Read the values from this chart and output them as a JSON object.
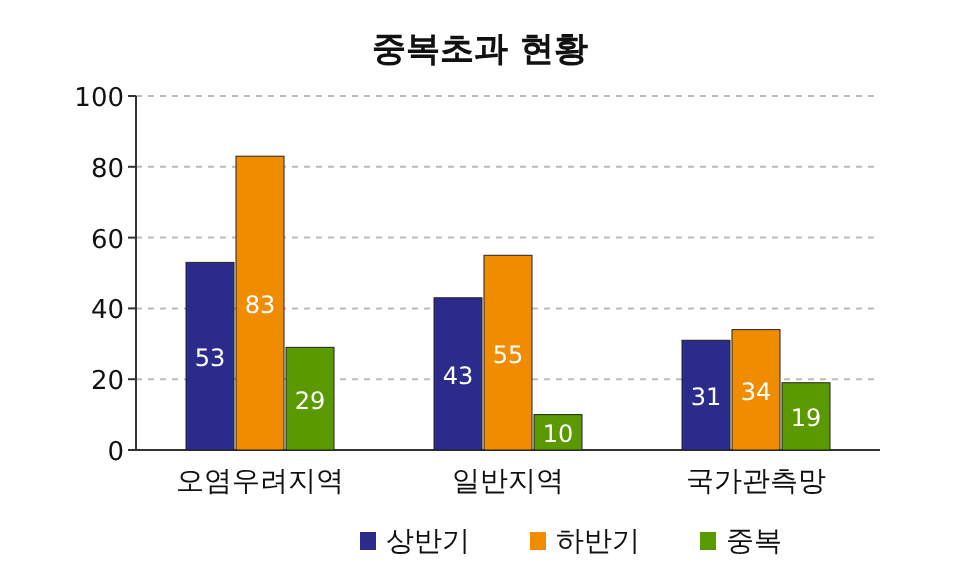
{
  "chart_data": {
    "type": "bar",
    "title": "중복초과 현황",
    "categories": [
      "오염우려지역",
      "일반지역",
      "국가관측망"
    ],
    "series": [
      {
        "name": "상반기",
        "color": "#2b2b8c",
        "values": [
          53,
          43,
          31
        ]
      },
      {
        "name": "하반기",
        "color": "#f08c00",
        "values": [
          83,
          55,
          34
        ]
      },
      {
        "name": "중복",
        "color": "#5a9a00",
        "values": [
          29,
          10,
          19
        ]
      }
    ],
    "ylim": [
      0,
      100
    ],
    "yticks": [
      0,
      20,
      40,
      60,
      80,
      100
    ],
    "grid": "y",
    "legend": "bottom",
    "data_labels": true
  }
}
